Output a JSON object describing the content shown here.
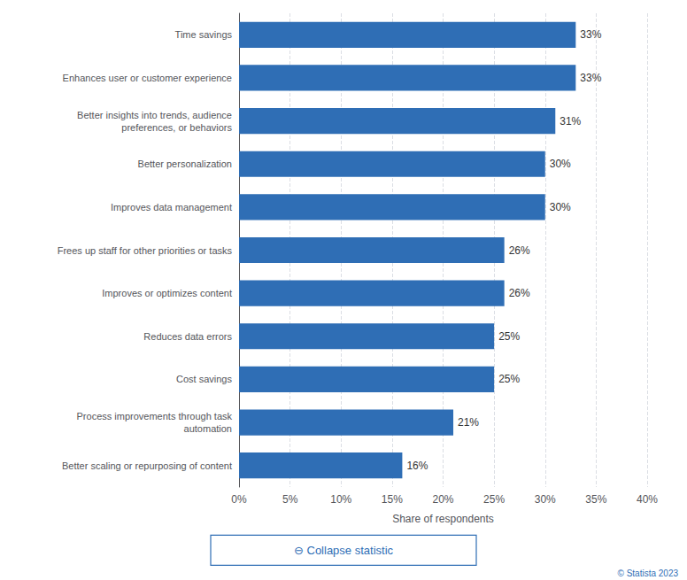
{
  "chart_data": {
    "type": "bar",
    "orientation": "horizontal",
    "categories": [
      "Time savings",
      "Enhances user or customer experience",
      "Better insights into trends, audience\npreferences, or behaviors",
      "Better personalization",
      "Improves data management",
      "Frees up staff for other priorities or tasks",
      "Improves or optimizes content",
      "Reduces data errors",
      "Cost savings",
      "Process improvements through task\nautomation",
      "Better scaling or repurposing of content"
    ],
    "values": [
      33,
      33,
      31,
      30,
      30,
      26,
      26,
      25,
      25,
      21,
      16
    ],
    "value_labels": [
      "33%",
      "33%",
      "31%",
      "30%",
      "30%",
      "26%",
      "26%",
      "25%",
      "25%",
      "21%",
      "16%"
    ],
    "data_labels": true,
    "color": "#2f6eb5",
    "xlabel": "Share of respondents",
    "xlim": [
      0,
      40
    ],
    "xticks": [
      {
        "value": 0,
        "label": "0%"
      },
      {
        "value": 5,
        "label": "5%"
      },
      {
        "value": 10,
        "label": "10%"
      },
      {
        "value": 15,
        "label": "15%"
      },
      {
        "value": 20,
        "label": "20%"
      },
      {
        "value": 25,
        "label": "25%"
      },
      {
        "value": 30,
        "label": "30%"
      },
      {
        "value": 35,
        "label": "35%"
      },
      {
        "value": 40,
        "label": "40%"
      }
    ],
    "grid": true,
    "annotations": [
      "⊖ Collapse statistic",
      "© Statista 2023"
    ]
  }
}
